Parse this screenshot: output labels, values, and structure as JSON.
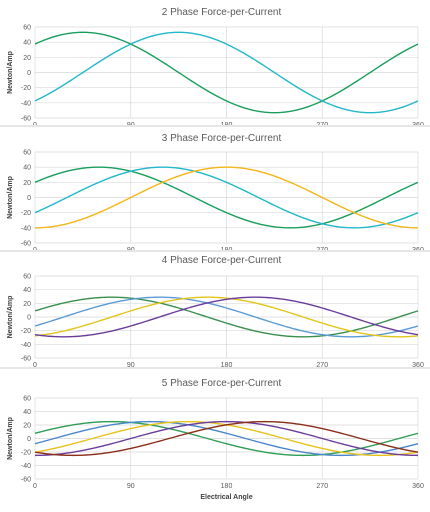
{
  "chart_data": [
    {
      "type": "line",
      "title": "2 Phase Force-per-Current",
      "ylabel": "Newton/Amp",
      "xlabel": "",
      "xlim": [
        0,
        360
      ],
      "ylim": [
        -60,
        60
      ],
      "xticks": [
        0,
        90,
        180,
        270,
        360
      ],
      "yticks": [
        60,
        40,
        20,
        0,
        -20,
        -40,
        -60
      ],
      "ytick_labels": [
        "60",
        "40",
        "20",
        "0",
        "-20",
        "-40",
        "-60"
      ],
      "grid": true,
      "amplitude": 53,
      "series": [
        {
          "color": "#1a9e5c",
          "peak_deg": 45
        },
        {
          "color": "#22b7c9",
          "peak_deg": 135
        }
      ]
    },
    {
      "type": "line",
      "title": "3 Phase Force-per-Current",
      "ylabel": "Newton/Amp",
      "xlabel": "",
      "xlim": [
        0,
        360
      ],
      "ylim": [
        -60,
        60
      ],
      "xticks": [
        0,
        90,
        180,
        270,
        360
      ],
      "yticks": [
        60,
        40,
        20,
        0,
        -20,
        -40,
        -60
      ],
      "ytick_labels": [
        "60",
        "40",
        "20",
        "0",
        "-20",
        "-40",
        "-60"
      ],
      "grid": true,
      "amplitude": 40,
      "series": [
        {
          "color": "#1a9e5c",
          "peak_deg": 60
        },
        {
          "color": "#22b7c9",
          "peak_deg": 120
        },
        {
          "color": "#f2b619",
          "peak_deg": 180
        }
      ]
    },
    {
      "type": "line",
      "title": "4 Phase Force-per-Current",
      "ylabel": "Newton/Amp",
      "xlabel": "",
      "xlim": [
        0,
        360
      ],
      "ylim": [
        -60,
        60
      ],
      "xticks": [
        0,
        90,
        180,
        270,
        360
      ],
      "yticks": [
        60,
        40,
        20,
        0,
        -20,
        -40,
        -60
      ],
      "ytick_labels": [
        "60",
        "40",
        "20",
        "0",
        "-20",
        "-40",
        "-60"
      ],
      "grid": true,
      "amplitude": 29,
      "series": [
        {
          "color": "#3a8f4e",
          "peak_deg": 72
        },
        {
          "color": "#5b9bd5",
          "peak_deg": 117
        },
        {
          "color": "#e2c51a",
          "peak_deg": 162
        },
        {
          "color": "#6a3d9a",
          "peak_deg": 207
        }
      ]
    },
    {
      "type": "line",
      "title": "5 Phase Force-per-Current",
      "ylabel": "Newton/Amp",
      "xlabel": "Electrical Angle",
      "xlim": [
        0,
        360
      ],
      "ylim": [
        -60,
        60
      ],
      "xticks": [
        0,
        90,
        180,
        270,
        360
      ],
      "yticks": [
        60,
        40,
        20,
        0,
        -20,
        -40,
        -60
      ],
      "ytick_labels": [
        "60",
        "40",
        "20",
        "0",
        "-20",
        "-40",
        "-60"
      ],
      "grid": true,
      "amplitude": 25,
      "series": [
        {
          "color": "#2e9e55",
          "peak_deg": 72
        },
        {
          "color": "#4a86c8",
          "peak_deg": 108
        },
        {
          "color": "#e8c21a",
          "peak_deg": 144
        },
        {
          "color": "#6a3d9a",
          "peak_deg": 180
        },
        {
          "color": "#8b2e1a",
          "peak_deg": 216
        }
      ]
    }
  ]
}
